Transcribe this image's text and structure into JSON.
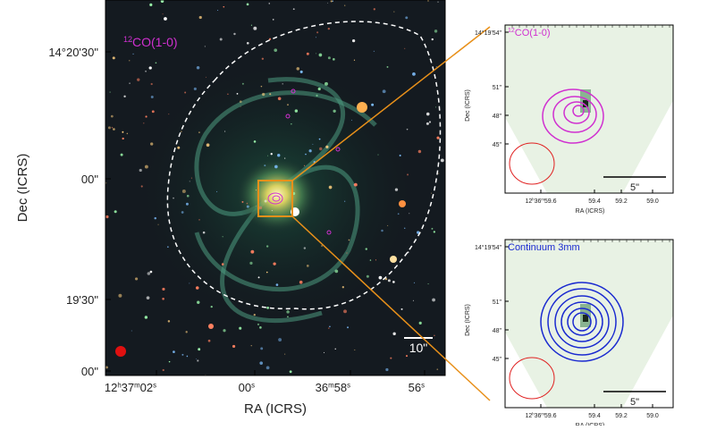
{
  "main": {
    "line_label": {
      "sup": "12",
      "text": "CO(1-0)"
    },
    "y_label": "Dec (ICRS)",
    "x_label": "RA (ICRS)",
    "yticks": [
      "14°20'30\"",
      "00\"",
      "19'30\"",
      "00\""
    ],
    "xticks": [
      [
        "12",
        "h",
        "37",
        "m",
        "02",
        "s"
      ],
      [
        "00",
        "s"
      ],
      [
        "36",
        "m",
        "58",
        "s"
      ],
      [
        "56",
        "s"
      ]
    ],
    "scale_bar": "10\""
  },
  "insets": [
    {
      "label": {
        "sup": "12",
        "text": "CO(1-0)"
      },
      "y_label": "Dec (ICRS)",
      "x_label": "RA (ICRS)",
      "yticks": [
        "14°19'54\"",
        "51\"",
        "48\"",
        "45\""
      ],
      "xticks": [
        [
          "12",
          "h",
          "36",
          "m",
          "59.6"
        ],
        [
          "59.4"
        ],
        [
          "59.2"
        ],
        [
          "59.0"
        ]
      ],
      "scale_bar": "5\""
    },
    {
      "label": {
        "text": "Continuum 3mm"
      },
      "y_label": "Dec (ICRS)",
      "x_label": "RA (ICRS)",
      "yticks": [
        "14°19'54\"",
        "51\"",
        "48\"",
        "45\""
      ],
      "xticks": [
        [
          "12",
          "h",
          "36",
          "m",
          "59.6"
        ],
        [
          "59.4"
        ],
        [
          "59.2"
        ],
        [
          "59.0"
        ]
      ],
      "scale_bar": "5\""
    }
  ]
}
